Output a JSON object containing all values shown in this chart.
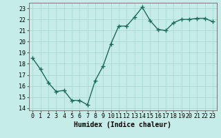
{
  "x": [
    0,
    1,
    2,
    3,
    4,
    5,
    6,
    7,
    8,
    9,
    10,
    11,
    12,
    13,
    14,
    15,
    16,
    17,
    18,
    19,
    20,
    21,
    22,
    23
  ],
  "y": [
    18.5,
    17.5,
    16.3,
    15.5,
    15.6,
    14.7,
    14.7,
    14.3,
    16.5,
    17.8,
    19.8,
    21.4,
    21.4,
    22.2,
    23.1,
    21.9,
    21.1,
    21.0,
    21.7,
    22.0,
    22.0,
    22.1,
    22.1,
    21.8
  ],
  "xlabel": "Humidex (Indice chaleur)",
  "line_color": "#1a6b5a",
  "marker_color": "#1a6b5a",
  "bg_color": "#c5ece6",
  "grid_color": "#aad8d0",
  "xlim": [
    -0.5,
    23.5
  ],
  "ylim": [
    13.8,
    23.5
  ],
  "yticks": [
    14,
    15,
    16,
    17,
    18,
    19,
    20,
    21,
    22,
    23
  ],
  "xticks": [
    0,
    1,
    2,
    3,
    4,
    5,
    6,
    7,
    8,
    9,
    10,
    11,
    12,
    13,
    14,
    15,
    16,
    17,
    18,
    19,
    20,
    21,
    22,
    23
  ],
  "xtick_labels": [
    "0",
    "1",
    "2",
    "3",
    "4",
    "5",
    "6",
    "7",
    "8",
    "9",
    "10",
    "11",
    "12",
    "13",
    "14",
    "15",
    "16",
    "17",
    "18",
    "19",
    "20",
    "21",
    "22",
    "23"
  ],
  "marker_size": 2.5,
  "line_width": 1.0,
  "xlabel_fontsize": 7,
  "tick_fontsize": 6
}
